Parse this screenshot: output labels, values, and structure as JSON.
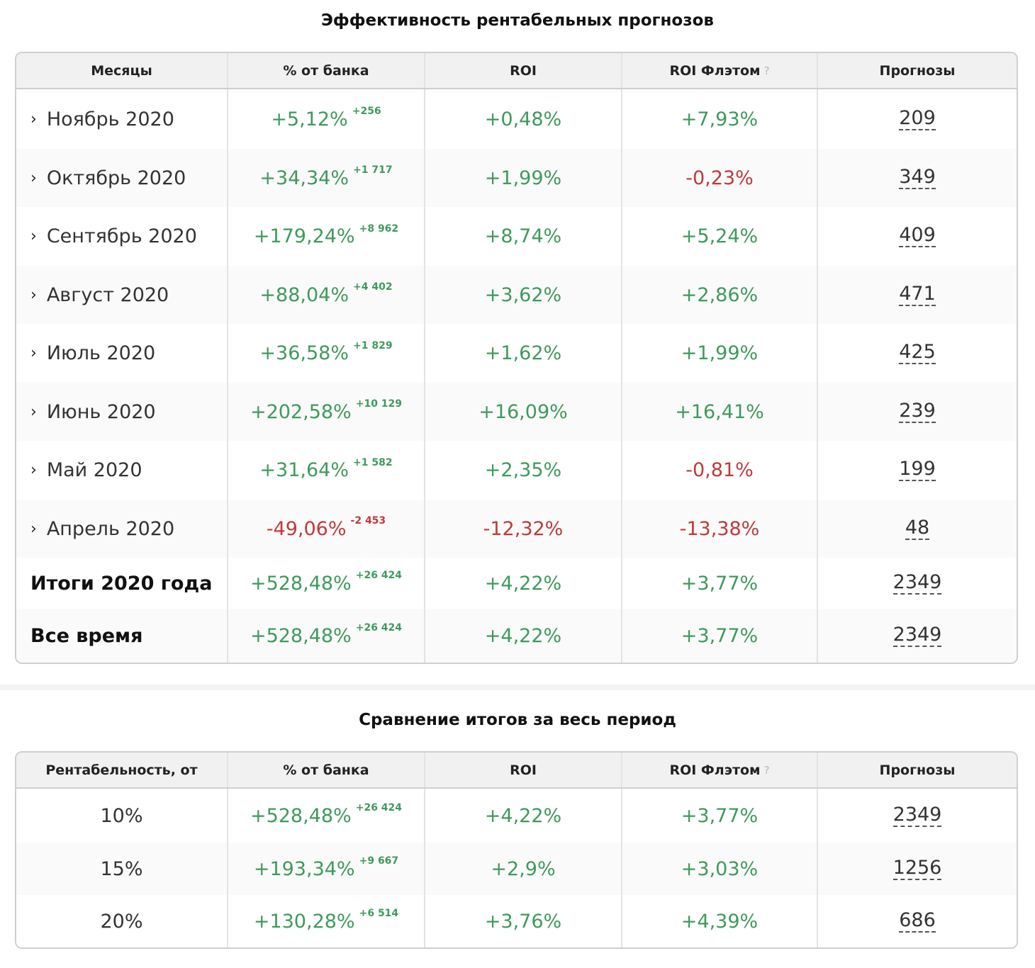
{
  "t1": {
    "title": "Эффективность рентабельных прогнозов",
    "headers": [
      "Месяцы",
      "% от банка",
      "ROI",
      "ROI Флэтом",
      "Прогнозы"
    ],
    "qmark": "?",
    "rows": [
      {
        "label": "Ноябрь 2020",
        "bank": "+5,12%",
        "bank_delta": "+256",
        "roi": "+0,48%",
        "roi_flat": "+7,93%",
        "count": "209"
      },
      {
        "label": "Октябрь 2020",
        "bank": "+34,34%",
        "bank_delta": "+1 717",
        "roi": "+1,99%",
        "roi_flat": "-0,23%",
        "count": "349"
      },
      {
        "label": "Сентябрь 2020",
        "bank": "+179,24%",
        "bank_delta": "+8 962",
        "roi": "+8,74%",
        "roi_flat": "+5,24%",
        "count": "409"
      },
      {
        "label": "Август 2020",
        "bank": "+88,04%",
        "bank_delta": "+4 402",
        "roi": "+3,62%",
        "roi_flat": "+2,86%",
        "count": "471"
      },
      {
        "label": "Июль 2020",
        "bank": "+36,58%",
        "bank_delta": "+1 829",
        "roi": "+1,62%",
        "roi_flat": "+1,99%",
        "count": "425"
      },
      {
        "label": "Июнь 2020",
        "bank": "+202,58%",
        "bank_delta": "+10 129",
        "roi": "+16,09%",
        "roi_flat": "+16,41%",
        "count": "239"
      },
      {
        "label": "Май 2020",
        "bank": "+31,64%",
        "bank_delta": "+1 582",
        "roi": "+2,35%",
        "roi_flat": "-0,81%",
        "count": "199"
      },
      {
        "label": "Апрель 2020",
        "bank": "-49,06%",
        "bank_delta": "-2 453",
        "roi": "-12,32%",
        "roi_flat": "-13,38%",
        "count": "48"
      },
      {
        "label": "Итоги 2020 года",
        "bank": "+528,48%",
        "bank_delta": "+26 424",
        "roi": "+4,22%",
        "roi_flat": "+3,77%",
        "count": "2349"
      },
      {
        "label": "Все время",
        "bank": "+528,48%",
        "bank_delta": "+26 424",
        "roi": "+4,22%",
        "roi_flat": "+3,77%",
        "count": "2349"
      }
    ]
  },
  "t2": {
    "title": "Сравнение итогов за весь период",
    "headers": [
      "Рентабельность, от",
      "% от банка",
      "ROI",
      "ROI Флэтом",
      "Прогнозы"
    ],
    "qmark": "?",
    "rows": [
      {
        "label": "10%",
        "bank": "+528,48%",
        "bank_delta": "+26 424",
        "roi": "+4,22%",
        "roi_flat": "+3,77%",
        "count": "2349"
      },
      {
        "label": "15%",
        "bank": "+193,34%",
        "bank_delta": "+9 667",
        "roi": "+2,9%",
        "roi_flat": "+3,03%",
        "count": "1256"
      },
      {
        "label": "20%",
        "bank": "+130,28%",
        "bank_delta": "+6 514",
        "roi": "+3,76%",
        "roi_flat": "+4,39%",
        "count": "686"
      }
    ]
  },
  "colors": {
    "positive": "#3e9a5c",
    "negative": "#c0393b",
    "header_bg": "#f1f1f1",
    "border": "#cfcfcf"
  }
}
